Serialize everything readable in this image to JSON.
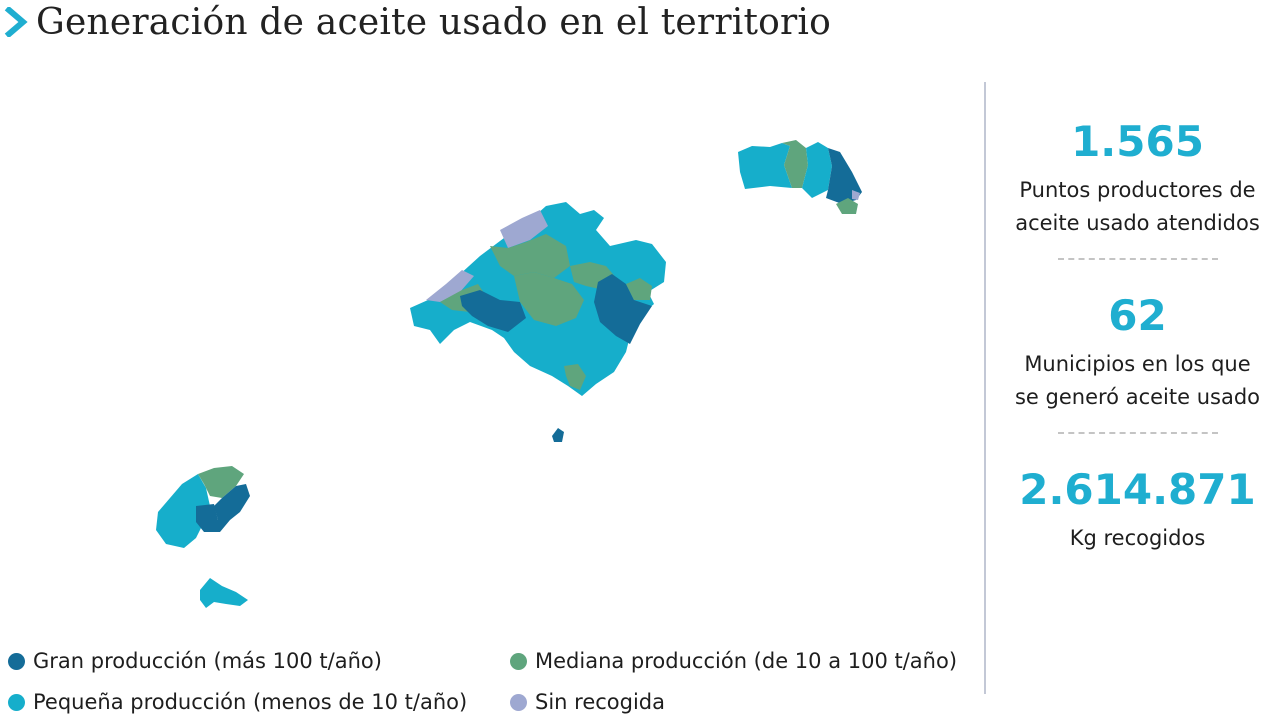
{
  "header": {
    "title": "Generación de aceite usado en el territorio"
  },
  "colors": {
    "accent": "#1faed0",
    "gran": "#146c98",
    "pequena": "#16aecb",
    "mediana": "#5fa57d",
    "sin": "#9ea8d1"
  },
  "legend": {
    "items": [
      {
        "label": "Gran producción (más 100 t/año)",
        "color": "#146c98"
      },
      {
        "label": "Mediana producción (de 10 a 100 t/año)",
        "color": "#5fa57d"
      },
      {
        "label": "Pequeña producción (menos de 10 t/año)",
        "color": "#16aecb"
      },
      {
        "label": "Sin recogida",
        "color": "#9ea8d1"
      }
    ]
  },
  "stats": [
    {
      "value": "1.565",
      "label_line1": "Puntos productores de",
      "label_line2": "aceite usado atendidos"
    },
    {
      "value": "62",
      "label_line1": "Municipios en los que",
      "label_line2": "se generó aceite usado"
    },
    {
      "value": "2.614.871",
      "label_line1": "Kg recogidos",
      "label_line2": ""
    }
  ],
  "map": {
    "islands": [
      "mallorca",
      "menorca",
      "ibiza",
      "formentera",
      "cabrera"
    ],
    "categories": [
      "gran",
      "mediana",
      "pequena",
      "sin"
    ]
  }
}
